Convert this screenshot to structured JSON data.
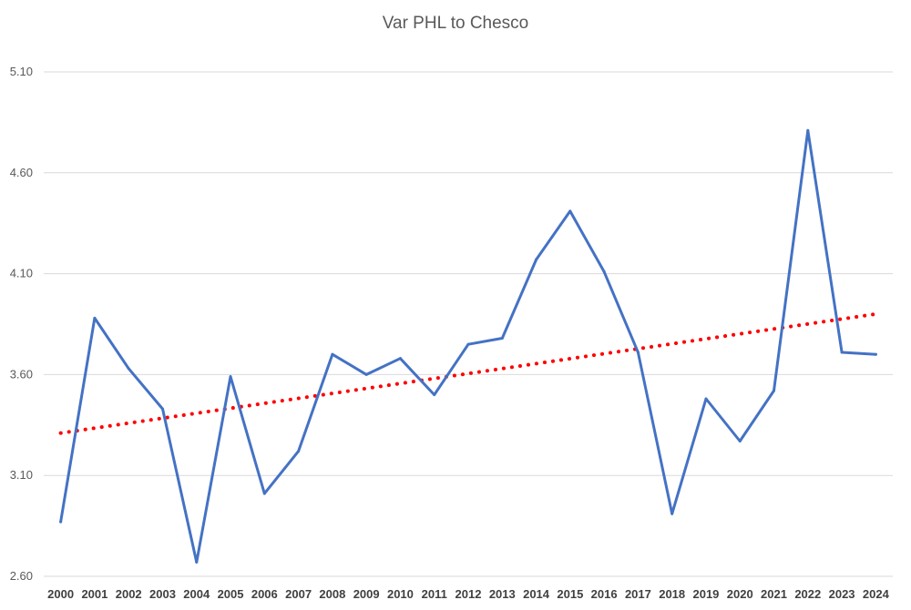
{
  "chart_data": {
    "type": "line",
    "title": "Var PHL to Chesco",
    "xlabel": "",
    "ylabel": "",
    "categories": [
      "2000",
      "2001",
      "2002",
      "2003",
      "2004",
      "2005",
      "2006",
      "2007",
      "2008",
      "2009",
      "2010",
      "2011",
      "2012",
      "2013",
      "2014",
      "2015",
      "2016",
      "2017",
      "2018",
      "2019",
      "2020",
      "2021",
      "2022",
      "2023",
      "2024"
    ],
    "series": [
      {
        "values": [
          2.87,
          3.88,
          3.63,
          3.43,
          2.67,
          3.59,
          3.01,
          3.22,
          3.7,
          3.6,
          3.68,
          3.5,
          3.75,
          3.78,
          4.17,
          4.41,
          4.11,
          3.71,
          2.91,
          3.48,
          3.27,
          3.52,
          4.81,
          3.71,
          3.7
        ],
        "color": "#4472C4"
      }
    ],
    "trendline": {
      "type": "linear",
      "start": 3.31,
      "end": 3.9,
      "color": "#FF0000",
      "style": "dotted"
    },
    "ylim": [
      2.6,
      5.1
    ],
    "yticks": [
      "2.60",
      "3.10",
      "3.60",
      "4.10",
      "4.60",
      "5.10"
    ],
    "grid": true,
    "legend": "none"
  }
}
